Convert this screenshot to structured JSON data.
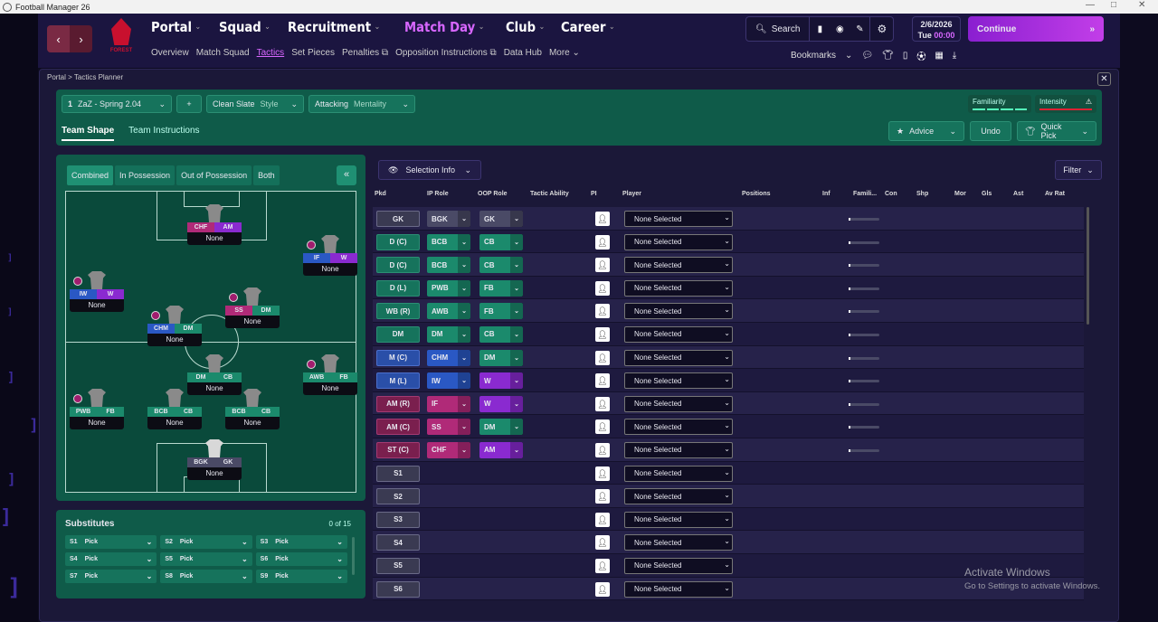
{
  "window": {
    "title": "Football Manager 26",
    "controls": [
      "—",
      "□",
      "✕"
    ]
  },
  "nav": {
    "items": [
      {
        "label": "Portal",
        "active": false
      },
      {
        "label": "Squad",
        "active": false
      },
      {
        "label": "Recruitment",
        "active": false
      },
      {
        "label": "Match Day",
        "active": true
      },
      {
        "label": "Club",
        "active": false
      },
      {
        "label": "Career",
        "active": false
      }
    ],
    "sub": [
      {
        "label": "Overview",
        "active": false
      },
      {
        "label": "Match Squad",
        "active": false
      },
      {
        "label": "Tactics",
        "active": true
      },
      {
        "label": "Set Pieces",
        "active": false
      },
      {
        "label": "Penalties ⧉",
        "active": false
      },
      {
        "label": "Opposition Instructions ⧉",
        "active": false
      },
      {
        "label": "Data Hub",
        "active": false
      },
      {
        "label": "More ⌄",
        "active": false
      }
    ],
    "crest_text": "FOREST"
  },
  "search": {
    "label": "Search"
  },
  "date": {
    "line1": "2/6/2026",
    "day": "Tue",
    "time": "00:00"
  },
  "continue_label": "Continue",
  "bookmarks_label": "Bookmarks",
  "breadcrumb": {
    "portal": "Portal",
    "sep": ">",
    "page": "Tactics Planner"
  },
  "tactic": {
    "number": "1",
    "name": "ZaZ - Spring 2.04",
    "plus": "+",
    "style_value": "Clean Slate",
    "style_label": "Style",
    "mentality_value": "Attacking",
    "mentality_label": "Mentality",
    "familiarity": "Familiarity",
    "intensity": "Intensity",
    "tabs": [
      {
        "label": "Team Shape",
        "active": true
      },
      {
        "label": "Team Instructions",
        "active": false
      }
    ],
    "advice": "Advice",
    "undo": "Undo",
    "quick_pick": "Quick Pick"
  },
  "pitch": {
    "tabs": [
      {
        "label": "Combined",
        "active": true
      },
      {
        "label": "In Possession",
        "active": false
      },
      {
        "label": "Out of Possession",
        "active": false
      },
      {
        "label": "Both",
        "active": false
      }
    ],
    "collapse": "«",
    "players": [
      {
        "r1": "CHF",
        "r2": "AM",
        "c1": "#b02a78",
        "c2": "#8a2ad0",
        "name": "None",
        "left": 134,
        "top": 14,
        "dot": false,
        "shirt": "#8a8a8a"
      },
      {
        "r1": "IF",
        "r2": "W",
        "c1": "#2a58c4",
        "c2": "#8a2ad0",
        "name": "None",
        "left": 262,
        "top": 48,
        "dot": true,
        "shirt": "#8a8a8a"
      },
      {
        "r1": "IW",
        "r2": "W",
        "c1": "#2a58c4",
        "c2": "#8a2ad0",
        "name": "None",
        "left": 4,
        "top": 88,
        "dot": true,
        "shirt": "#8a8a8a"
      },
      {
        "r1": "SS",
        "r2": "DM",
        "c1": "#b02a78",
        "c2": "#1b8a6c",
        "name": "None",
        "left": 176,
        "top": 106,
        "dot": true,
        "shirt": "#8a8a8a"
      },
      {
        "r1": "CHM",
        "r2": "DM",
        "c1": "#2a58c4",
        "c2": "#1b8a6c",
        "name": "None",
        "left": 90,
        "top": 126,
        "dot": true,
        "shirt": "#8a8a8a"
      },
      {
        "r1": "DM",
        "r2": "CB",
        "c1": "#1b8a6c",
        "c2": "#1b8a6c",
        "name": "None",
        "left": 134,
        "top": 180,
        "dot": false,
        "shirt": "#8a8a8a"
      },
      {
        "r1": "AWB",
        "r2": "FB",
        "c1": "#1b8a6c",
        "c2": "#1b8a6c",
        "name": "None",
        "left": 262,
        "top": 180,
        "dot": true,
        "shirt": "#8a8a8a"
      },
      {
        "r1": "PWB",
        "r2": "FB",
        "c1": "#1b8a6c",
        "c2": "#1b8a6c",
        "name": "None",
        "left": 4,
        "top": 218,
        "dot": true,
        "shirt": "#8a8a8a"
      },
      {
        "r1": "BCB",
        "r2": "CB",
        "c1": "#1b8a6c",
        "c2": "#1b8a6c",
        "name": "None",
        "left": 90,
        "top": 218,
        "dot": false,
        "shirt": "#8a8a8a"
      },
      {
        "r1": "BCB",
        "r2": "CB",
        "c1": "#1b8a6c",
        "c2": "#1b8a6c",
        "name": "None",
        "left": 176,
        "top": 218,
        "dot": false,
        "shirt": "#8a8a8a"
      },
      {
        "r1": "BGK",
        "r2": "GK",
        "c1": "#4a4a66",
        "c2": "#4a4a66",
        "name": "None",
        "left": 134,
        "top": 274,
        "dot": false,
        "shirt": "#d8d8d8"
      }
    ]
  },
  "subs": {
    "title": "Substitutes",
    "count": "0 of 15",
    "items": [
      {
        "s": "S1",
        "p": "Pick"
      },
      {
        "s": "S2",
        "p": "Pick"
      },
      {
        "s": "S3",
        "p": "Pick"
      },
      {
        "s": "S4",
        "p": "Pick"
      },
      {
        "s": "S5",
        "p": "Pick"
      },
      {
        "s": "S6",
        "p": "Pick"
      },
      {
        "s": "S7",
        "p": "Pick"
      },
      {
        "s": "S8",
        "p": "Pick"
      },
      {
        "s": "S9",
        "p": "Pick"
      }
    ]
  },
  "table": {
    "selection_info": "Selection Info",
    "filter": "Filter",
    "headers": [
      "Pkd",
      "IP Role",
      "OOP Role",
      "Tactic Ability",
      "PI",
      "Player",
      "Positions",
      "Inf",
      "Famili...",
      "Con",
      "Shp",
      "Mor",
      "Gls",
      "Ast",
      "Av Rat"
    ],
    "rows": [
      {
        "pos": "GK",
        "ip": "BGK",
        "oop": "GK",
        "pc": "gk",
        "ipc": "c-gk",
        "oopc": "c-gk",
        "player": "None Selected"
      },
      {
        "pos": "D (C)",
        "ip": "BCB",
        "oop": "CB",
        "pc": "df",
        "ipc": "c-df",
        "oopc": "c-df",
        "player": "None Selected"
      },
      {
        "pos": "D (C)",
        "ip": "BCB",
        "oop": "CB",
        "pc": "df",
        "ipc": "c-df",
        "oopc": "c-df",
        "player": "None Selected"
      },
      {
        "pos": "D (L)",
        "ip": "PWB",
        "oop": "FB",
        "pc": "df",
        "ipc": "c-df",
        "oopc": "c-df",
        "player": "None Selected"
      },
      {
        "pos": "WB (R)",
        "ip": "AWB",
        "oop": "FB",
        "pc": "df",
        "ipc": "c-df",
        "oopc": "c-df",
        "player": "None Selected"
      },
      {
        "pos": "DM",
        "ip": "DM",
        "oop": "CB",
        "pc": "df",
        "ipc": "c-df",
        "oopc": "c-df",
        "player": "None Selected"
      },
      {
        "pos": "M (C)",
        "ip": "CHM",
        "oop": "DM",
        "pc": "mf",
        "ipc": "c-mf",
        "oopc": "c-df",
        "player": "None Selected"
      },
      {
        "pos": "M (L)",
        "ip": "IW",
        "oop": "W",
        "pc": "mf",
        "ipc": "c-mf",
        "oopc": "c-fw",
        "player": "None Selected"
      },
      {
        "pos": "AM (R)",
        "ip": "IF",
        "oop": "W",
        "pc": "am",
        "ipc": "c-am",
        "oopc": "c-fw",
        "player": "None Selected"
      },
      {
        "pos": "AM (C)",
        "ip": "SS",
        "oop": "DM",
        "pc": "am",
        "ipc": "c-am",
        "oopc": "c-df",
        "player": "None Selected"
      },
      {
        "pos": "ST (C)",
        "ip": "CHF",
        "oop": "AM",
        "pc": "am",
        "ipc": "c-am",
        "oopc": "c-fw",
        "player": "None Selected"
      },
      {
        "pos": "S1",
        "ip": "",
        "oop": "",
        "pc": "sub",
        "player": "None Selected"
      },
      {
        "pos": "S2",
        "ip": "",
        "oop": "",
        "pc": "sub",
        "player": "None Selected"
      },
      {
        "pos": "S3",
        "ip": "",
        "oop": "",
        "pc": "sub",
        "player": "None Selected"
      },
      {
        "pos": "S4",
        "ip": "",
        "oop": "",
        "pc": "sub",
        "player": "None Selected"
      },
      {
        "pos": "S5",
        "ip": "",
        "oop": "",
        "pc": "sub",
        "player": "None Selected"
      },
      {
        "pos": "S6",
        "ip": "",
        "oop": "",
        "pc": "sub",
        "player": "None Selected"
      }
    ]
  },
  "watermark": {
    "title": "Activate Windows",
    "sub": "Go to Settings to activate Windows."
  }
}
